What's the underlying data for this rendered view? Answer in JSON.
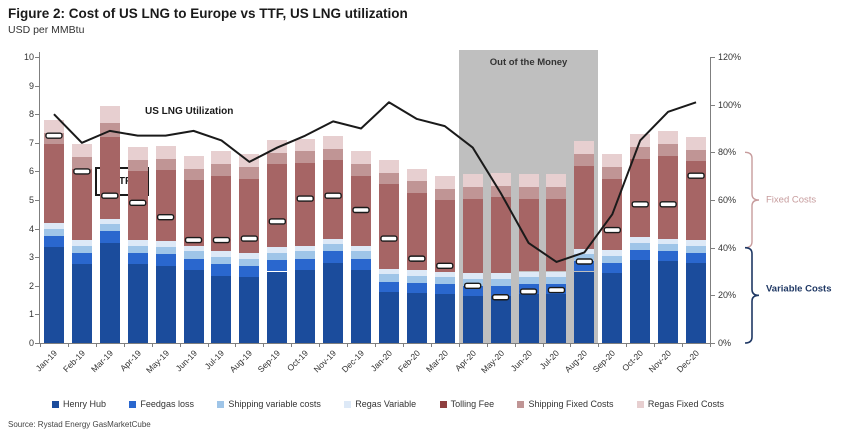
{
  "title": "Figure 2: Cost of US LNG to Europe vs TTF, US LNG utilization",
  "subtitle": "USD per MMBtu",
  "source": "Source: Rystad Energy GasMarketCube",
  "chart_data": {
    "type": "bar",
    "subtype": "stacked-bars-with-line-overlay-and-markers",
    "categories": [
      "Jan-19",
      "Feb-19",
      "Mar-19",
      "Apr-19",
      "May-19",
      "Jun-19",
      "Jul-19",
      "Aug-19",
      "Sep-19",
      "Oct-19",
      "Nov-19",
      "Dec-19",
      "Jan-20",
      "Feb-20",
      "Mar-20",
      "Apr-20",
      "May-20",
      "Jun-20",
      "Jul-20",
      "Aug-20",
      "Sep-20",
      "Oct-20",
      "Nov-20",
      "Dec-20"
    ],
    "series": [
      {
        "name": "Henry Hub",
        "color": "#1b4c9c",
        "values": [
          3.35,
          2.75,
          3.5,
          2.75,
          2.7,
          2.55,
          2.35,
          2.3,
          2.5,
          2.55,
          2.8,
          2.55,
          1.8,
          1.75,
          1.7,
          1.65,
          1.65,
          1.7,
          1.7,
          2.5,
          2.45,
          2.9,
          2.85,
          2.8
        ]
      },
      {
        "name": "Feedgas loss",
        "color": "#2a67ce",
        "values": [
          0.4,
          0.4,
          0.4,
          0.4,
          0.4,
          0.4,
          0.4,
          0.4,
          0.4,
          0.4,
          0.4,
          0.4,
          0.35,
          0.35,
          0.35,
          0.35,
          0.35,
          0.35,
          0.35,
          0.35,
          0.35,
          0.35,
          0.35,
          0.35
        ]
      },
      {
        "name": "Shipping variable costs",
        "color": "#9fc5e8",
        "values": [
          0.25,
          0.25,
          0.25,
          0.25,
          0.25,
          0.25,
          0.25,
          0.25,
          0.25,
          0.25,
          0.25,
          0.25,
          0.25,
          0.25,
          0.25,
          0.25,
          0.25,
          0.25,
          0.25,
          0.25,
          0.25,
          0.25,
          0.25,
          0.25
        ]
      },
      {
        "name": "Regas Variable",
        "color": "#dde9f7",
        "values": [
          0.2,
          0.2,
          0.2,
          0.2,
          0.2,
          0.2,
          0.2,
          0.2,
          0.2,
          0.2,
          0.2,
          0.2,
          0.2,
          0.2,
          0.2,
          0.2,
          0.2,
          0.2,
          0.2,
          0.2,
          0.2,
          0.2,
          0.2,
          0.2
        ]
      },
      {
        "name": "Tolling Fee",
        "color": "#a66565",
        "values": [
          2.75,
          2.5,
          2.85,
          2.4,
          2.5,
          2.3,
          2.65,
          2.6,
          2.9,
          2.9,
          2.75,
          2.45,
          2.95,
          2.7,
          2.5,
          2.6,
          2.65,
          2.55,
          2.55,
          2.9,
          2.5,
          2.75,
          2.9,
          2.75
        ]
      },
      {
        "name": "Shipping Fixed Costs",
        "color": "#c09595",
        "values": [
          0.4,
          0.4,
          0.5,
          0.4,
          0.4,
          0.4,
          0.4,
          0.4,
          0.4,
          0.4,
          0.4,
          0.4,
          0.4,
          0.4,
          0.4,
          0.4,
          0.4,
          0.4,
          0.4,
          0.4,
          0.4,
          0.4,
          0.4,
          0.4
        ]
      },
      {
        "name": "Regas Fixed Costs",
        "color": "#e7cfd0",
        "values": [
          0.45,
          0.45,
          0.6,
          0.45,
          0.45,
          0.45,
          0.45,
          0.45,
          0.45,
          0.45,
          0.45,
          0.45,
          0.45,
          0.45,
          0.45,
          0.45,
          0.45,
          0.45,
          0.45,
          0.45,
          0.45,
          0.45,
          0.45,
          0.45
        ]
      }
    ],
    "ttf_markers": {
      "label": "TTF",
      "values": [
        7.25,
        6.0,
        5.15,
        4.9,
        4.4,
        3.6,
        3.6,
        3.65,
        4.25,
        5.05,
        5.15,
        4.65,
        3.65,
        2.95,
        2.7,
        2.0,
        1.6,
        1.8,
        1.85,
        2.85,
        3.95,
        4.85,
        4.85,
        5.85
      ]
    },
    "utilization_line": {
      "label": "US LNG Utilization",
      "color": "#1a1a1a",
      "values_pct": [
        96,
        84,
        89,
        87,
        87,
        89,
        85,
        76,
        82,
        87,
        93,
        90,
        101,
        94,
        91,
        82,
        63,
        42,
        34,
        38,
        54,
        85,
        97,
        101
      ]
    },
    "left_axis": {
      "min": 0,
      "max": 10,
      "step": 1,
      "ticks": [
        "0",
        "1",
        "2",
        "3",
        "4",
        "5",
        "6",
        "7",
        "8",
        "9",
        "10"
      ]
    },
    "right_axis": {
      "min_pct": 0,
      "max_pct": 120,
      "ticks": [
        "0%",
        "20%",
        "40%",
        "60%",
        "80%",
        "100%",
        "120%"
      ]
    },
    "annotations": {
      "out_of_money": {
        "label": "Out of the Money",
        "start_category": "Apr-20",
        "end_category": "Aug-20",
        "fill": "#bfbfbf"
      },
      "fixed_costs": {
        "label": "Fixed Costs",
        "color": "#c79c9d",
        "span_pct": [
          40,
          80
        ]
      },
      "variable_costs": {
        "label": "Variable Costs",
        "color": "#1f3864",
        "span_pct": [
          0,
          40
        ]
      }
    },
    "grid": "off",
    "legend_position": "bottom"
  },
  "legend": {
    "items": [
      {
        "label": "Henry Hub",
        "color": "#1b4c9c"
      },
      {
        "label": "Feedgas loss",
        "color": "#2a67ce"
      },
      {
        "label": "Shipping variable costs",
        "color": "#9fc5e8"
      },
      {
        "label": "Regas Variable",
        "color": "#dde9f7"
      },
      {
        "label": "Tolling Fee",
        "color": "#8f3f3f"
      },
      {
        "label": "Shipping Fixed Costs",
        "color": "#c09595"
      },
      {
        "label": "Regas Fixed Costs",
        "color": "#e7cfd0"
      }
    ]
  }
}
